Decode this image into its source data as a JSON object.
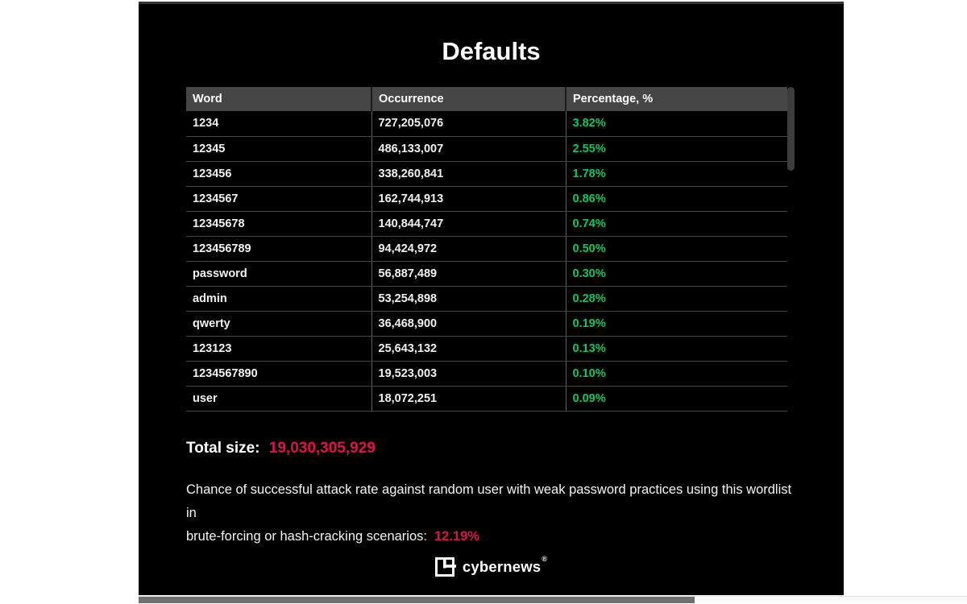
{
  "page": {
    "title": "Defaults"
  },
  "table": {
    "columns": [
      {
        "key": "word",
        "label": "Word"
      },
      {
        "key": "occurrence",
        "label": "Occurrence"
      },
      {
        "key": "percentage",
        "label": "Percentage, %"
      }
    ],
    "rows": [
      {
        "word": "1234",
        "occurrence": "727,205,076",
        "percentage": "3.82%"
      },
      {
        "word": "12345",
        "occurrence": "486,133,007",
        "percentage": "2.55%"
      },
      {
        "word": "123456",
        "occurrence": "338,260,841",
        "percentage": "1.78%"
      },
      {
        "word": "1234567",
        "occurrence": "162,744,913",
        "percentage": "0.86%"
      },
      {
        "word": "12345678",
        "occurrence": "140,844,747",
        "percentage": "0.74%"
      },
      {
        "word": "123456789",
        "occurrence": "94,424,972",
        "percentage": "0.50%"
      },
      {
        "word": "password",
        "occurrence": "56,887,489",
        "percentage": "0.30%"
      },
      {
        "word": "admin",
        "occurrence": "53,254,898",
        "percentage": "0.28%"
      },
      {
        "word": "qwerty",
        "occurrence": "36,468,900",
        "percentage": "0.19%"
      },
      {
        "word": "123123",
        "occurrence": "25,643,132",
        "percentage": "0.13%"
      },
      {
        "word": "1234567890",
        "occurrence": "19,523,003",
        "percentage": "0.10%"
      },
      {
        "word": "user",
        "occurrence": "18,072,251",
        "percentage": "0.09%"
      }
    ]
  },
  "summary": {
    "total_size_label": "Total size:",
    "total_size_value": "19,030,305,929",
    "attack_lines": [
      "Chance of successful attack rate against random user with weak password practices using this wordlist in",
      "brute-forcing or hash-cracking scenarios:"
    ],
    "attack_rate_value": "12.19%"
  },
  "footer": {
    "brand": "cybernews",
    "registered": "®"
  },
  "colors": {
    "percentage_green": "#0ac85a",
    "accent_red": "#e0104a",
    "header_bg": "#464646",
    "panel_bg": "#000000",
    "vscroll_thumb": "#3d3d3d",
    "hscroll_thumb": "#6f6f6f"
  }
}
